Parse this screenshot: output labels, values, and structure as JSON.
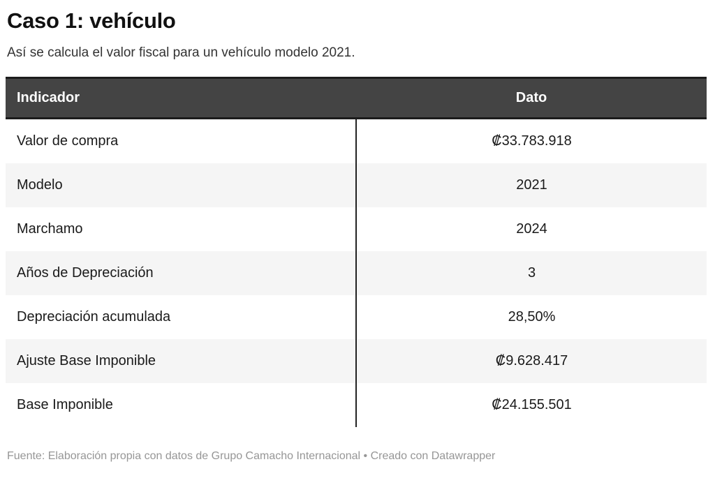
{
  "page": {
    "title": "Caso 1: vehículo",
    "subtitle": "Así se calcula el valor fiscal para un vehículo modelo 2021.",
    "footer": "Fuente: Elaboración propia con datos de Grupo Camacho Internacional • Creado con Datawrapper"
  },
  "table": {
    "headers": [
      "Indicador",
      "Dato"
    ],
    "rows": [
      {
        "indicador": "Valor de compra",
        "dato": "₡33.783.918"
      },
      {
        "indicador": "Modelo",
        "dato": "2021"
      },
      {
        "indicador": "Marchamo",
        "dato": "2024"
      },
      {
        "indicador": "Años de Depreciación",
        "dato": "3"
      },
      {
        "indicador": "Depreciación acumulada",
        "dato": "28,50%"
      },
      {
        "indicador": "Ajuste Base Imponible",
        "dato": "₡9.628.417"
      },
      {
        "indicador": "Base Imponible",
        "dato": "₡24.155.501"
      }
    ]
  },
  "colors": {
    "header_bg": "#444444",
    "header_text": "#ffffff",
    "header_border": "#1c1c1c",
    "row_alt_bg": "#f5f5f5",
    "row_text": "#1a1a1a",
    "column_divider": "#222222",
    "footer_text": "#969696"
  },
  "chart_data": {
    "type": "table",
    "title": "Caso 1: vehículo",
    "subtitle": "Así se calcula el valor fiscal para un vehículo modelo 2021.",
    "columns": [
      "Indicador",
      "Dato"
    ],
    "rows": [
      [
        "Valor de compra",
        "₡33.783.918"
      ],
      [
        "Modelo",
        "2021"
      ],
      [
        "Marchamo",
        "2024"
      ],
      [
        "Años de Depreciación",
        "3"
      ],
      [
        "Depreciación acumulada",
        "28,50%"
      ],
      [
        "Ajuste Base Imponible",
        "₡9.628.417"
      ],
      [
        "Base Imponible",
        "₡24.155.501"
      ]
    ],
    "layout_hints": {
      "header_style": "dark-bar",
      "row_striping": "alternating (white / light gray)",
      "value_alignment": "center",
      "column_divider": "vertical dark rule between columns in body only"
    },
    "source": "Fuente: Elaboración propia con datos de Grupo Camacho Internacional",
    "attribution": "Creado con Datawrapper"
  }
}
